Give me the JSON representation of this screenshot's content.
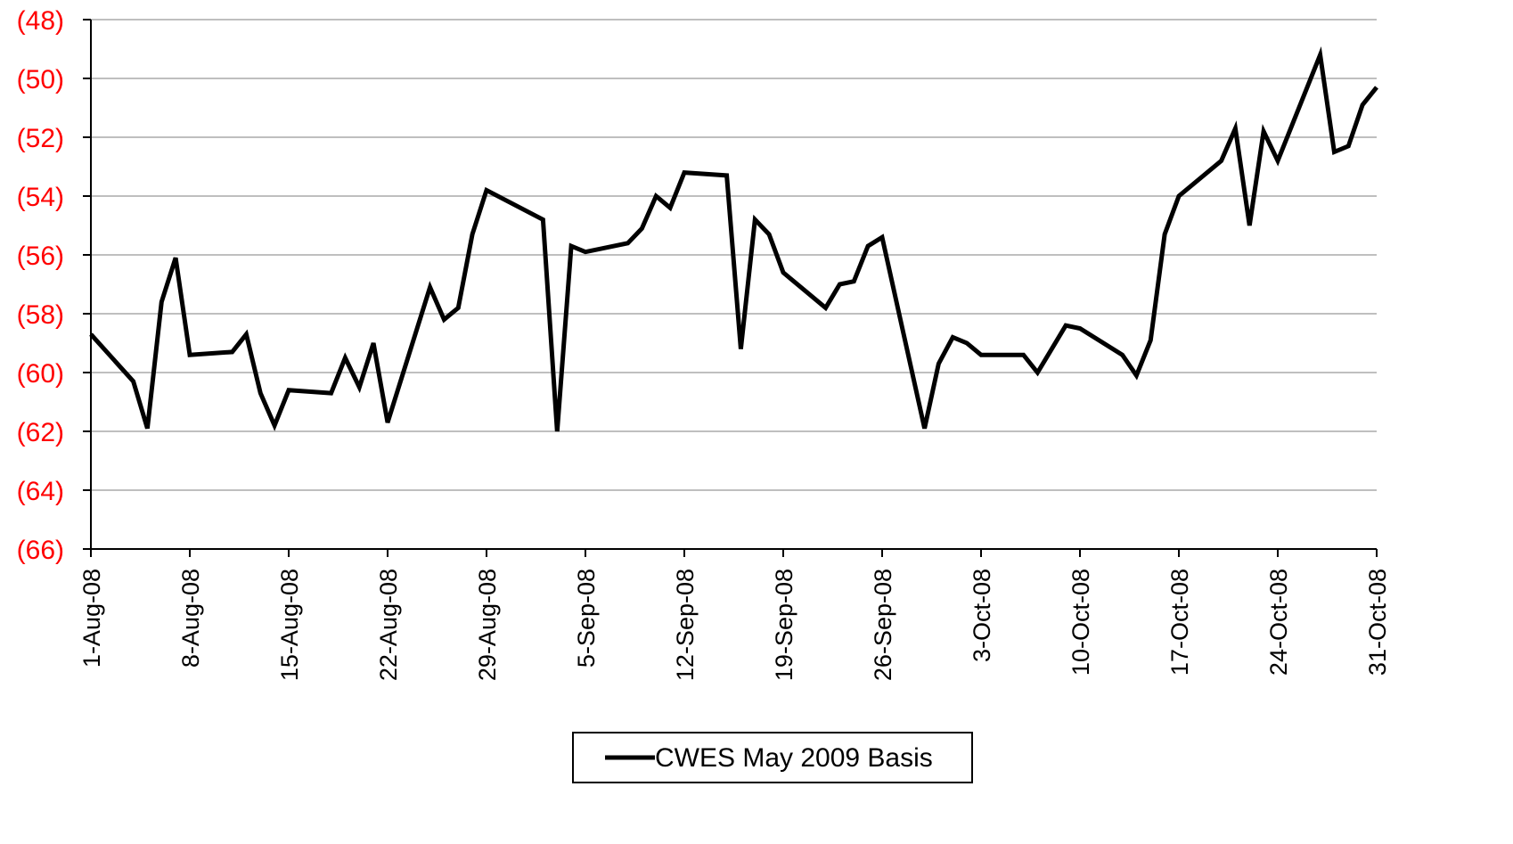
{
  "colors": {
    "line": "#000000",
    "ytick": "#ff0000",
    "grid": "#bfbfbf",
    "axis": "#000000"
  },
  "chart_data": {
    "type": "line",
    "title": "",
    "xlabel": "",
    "ylabel": "",
    "x_range": [
      "2008-08-01",
      "2008-10-31"
    ],
    "ylim": [
      -66,
      -48
    ],
    "grid": "horizontal",
    "legend_position": "bottom",
    "y_ticks": [
      "(48)",
      "(50)",
      "(52)",
      "(54)",
      "(56)",
      "(58)",
      "(60)",
      "(62)",
      "(64)",
      "(66)"
    ],
    "y_tick_values": [
      -48,
      -50,
      -52,
      -54,
      -56,
      -58,
      -60,
      -62,
      -64,
      -66
    ],
    "x_ticks": [
      "1-Aug-08",
      "8-Aug-08",
      "15-Aug-08",
      "22-Aug-08",
      "29-Aug-08",
      "5-Sep-08",
      "12-Sep-08",
      "19-Sep-08",
      "26-Sep-08",
      "3-Oct-08",
      "10-Oct-08",
      "17-Oct-08",
      "24-Oct-08",
      "31-Oct-08"
    ],
    "x_tick_dates": [
      "2008-08-01",
      "2008-08-08",
      "2008-08-15",
      "2008-08-22",
      "2008-08-29",
      "2008-09-05",
      "2008-09-12",
      "2008-09-19",
      "2008-09-26",
      "2008-10-03",
      "2008-10-10",
      "2008-10-17",
      "2008-10-24",
      "2008-10-31"
    ],
    "series": [
      {
        "name": "CWES May 2009 Basis",
        "x": [
          "2008-08-01",
          "2008-08-04",
          "2008-08-05",
          "2008-08-06",
          "2008-08-07",
          "2008-08-08",
          "2008-08-11",
          "2008-08-12",
          "2008-08-13",
          "2008-08-14",
          "2008-08-15",
          "2008-08-18",
          "2008-08-19",
          "2008-08-20",
          "2008-08-21",
          "2008-08-22",
          "2008-08-25",
          "2008-08-26",
          "2008-08-27",
          "2008-08-28",
          "2008-08-29",
          "2008-09-02",
          "2008-09-03",
          "2008-09-04",
          "2008-09-05",
          "2008-09-08",
          "2008-09-09",
          "2008-09-10",
          "2008-09-11",
          "2008-09-12",
          "2008-09-15",
          "2008-09-16",
          "2008-09-17",
          "2008-09-18",
          "2008-09-19",
          "2008-09-22",
          "2008-09-23",
          "2008-09-24",
          "2008-09-25",
          "2008-09-26",
          "2008-09-29",
          "2008-09-30",
          "2008-10-01",
          "2008-10-02",
          "2008-10-03",
          "2008-10-06",
          "2008-10-07",
          "2008-10-08",
          "2008-10-09",
          "2008-10-10",
          "2008-10-13",
          "2008-10-14",
          "2008-10-15",
          "2008-10-16",
          "2008-10-17",
          "2008-10-20",
          "2008-10-21",
          "2008-10-22",
          "2008-10-23",
          "2008-10-24",
          "2008-10-27",
          "2008-10-28",
          "2008-10-29",
          "2008-10-30",
          "2008-10-31"
        ],
        "values": [
          -58.7,
          -60.3,
          -61.9,
          -57.6,
          -56.1,
          -59.4,
          -59.3,
          -58.7,
          -60.7,
          -61.8,
          -60.6,
          -60.7,
          -59.5,
          -60.5,
          -59.0,
          -61.7,
          -57.1,
          -58.2,
          -57.8,
          -55.3,
          -53.8,
          -54.8,
          -62.0,
          -55.7,
          -55.9,
          -55.6,
          -55.1,
          -54.0,
          -54.4,
          -53.2,
          -53.3,
          -59.2,
          -54.8,
          -55.3,
          -56.6,
          -57.8,
          -57.0,
          -56.9,
          -55.7,
          -55.4,
          -61.9,
          -59.7,
          -58.8,
          -59.0,
          -59.4,
          -59.4,
          -60.0,
          -59.2,
          -58.4,
          -58.5,
          -59.4,
          -60.1,
          -58.9,
          -55.3,
          -54.0,
          -52.8,
          -51.7,
          -55.0,
          -51.8,
          -52.8,
          -49.2,
          -52.5,
          -52.3,
          -50.9,
          -50.3
        ]
      }
    ]
  }
}
